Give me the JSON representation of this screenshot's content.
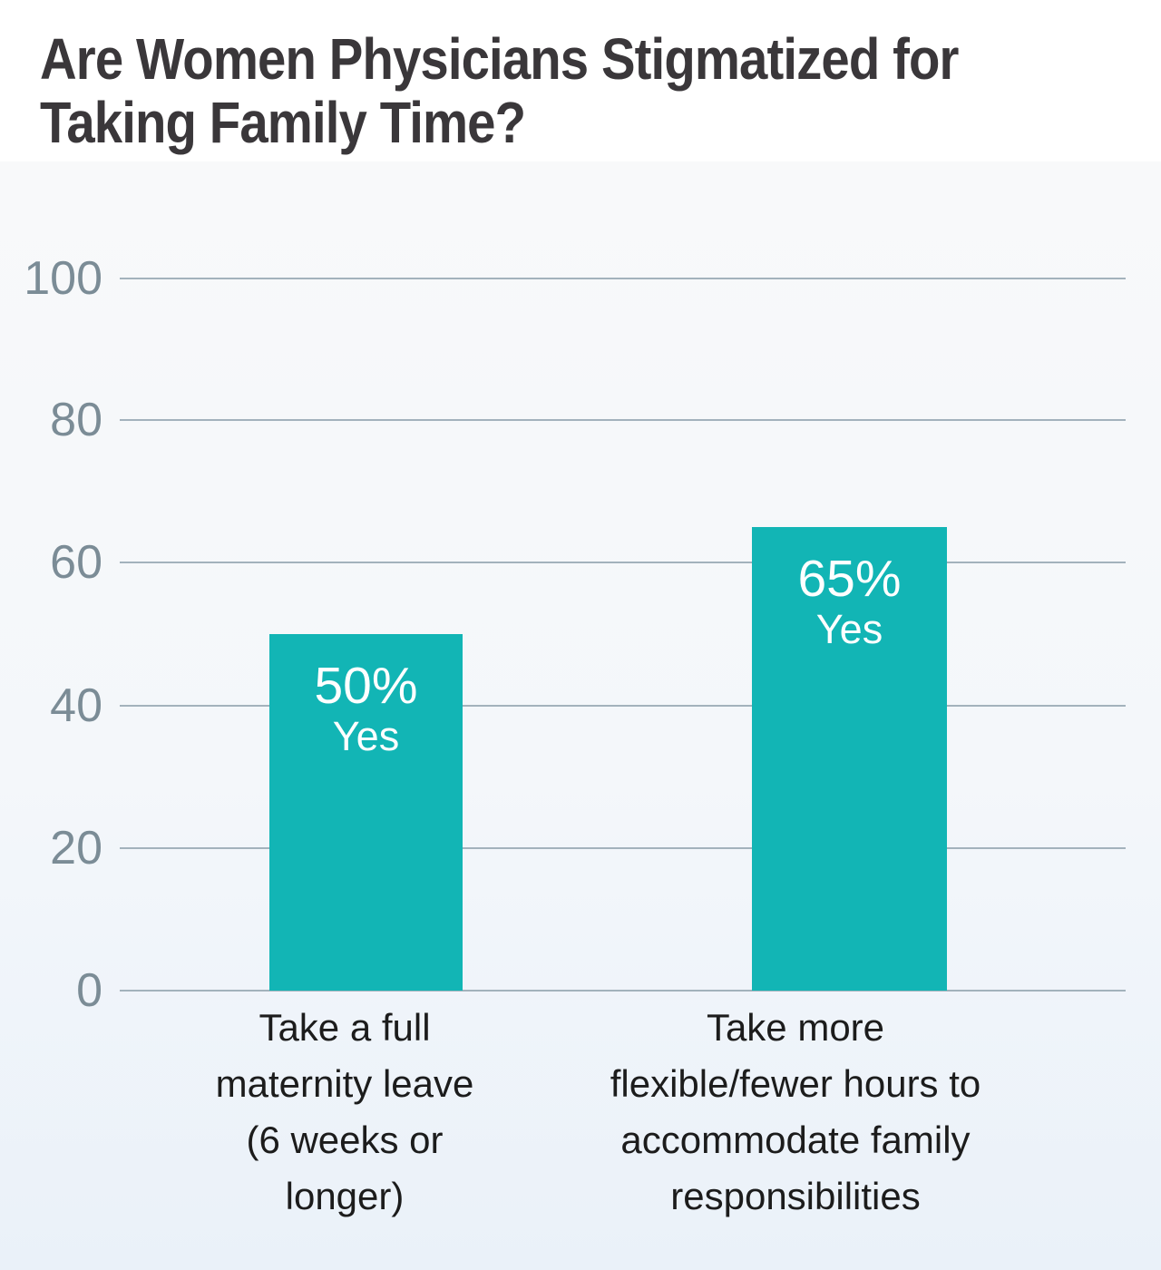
{
  "title": {
    "text": "Are Women Physicians Stigmatized for Taking Family Time?",
    "lines": [
      "Are Women Physicians Stigmatized for",
      "Taking Family Time?"
    ]
  },
  "y_axis": {
    "ticks": [
      "100",
      "80",
      "60",
      "40",
      "20",
      "0"
    ]
  },
  "bars": [
    {
      "pct": "50%",
      "answer": "Yes",
      "category_lines": [
        "Take a full",
        "maternity leave",
        "(6 weeks or",
        "longer)"
      ]
    },
    {
      "pct": "65%",
      "answer": "Yes",
      "category_lines": [
        "Take more",
        "flexible/fewer hours to",
        "accommodate family",
        "responsibilities"
      ]
    }
  ],
  "colors": {
    "bar": "#12b5b5",
    "gridline": "#a3b2bc",
    "tick_label": "#7b8c96",
    "title": "#3a373a",
    "category_label": "#1c1c1c",
    "panel_top": "#f8f9fa",
    "panel_bottom": "#eaf1f9",
    "bar_text": "#ffffff"
  },
  "chart_data": {
    "type": "bar",
    "title": "Are Women Physicians Stigmatized for Taking Family Time?",
    "categories": [
      "Take a full maternity leave (6 weeks or longer)",
      "Take more flexible/fewer hours to accommodate family responsibilities"
    ],
    "values": [
      50,
      65
    ],
    "value_labels": [
      "50% Yes",
      "65% Yes"
    ],
    "xlabel": "",
    "ylabel": "",
    "ylim": [
      0,
      100
    ],
    "y_ticks": [
      100,
      80,
      60,
      40,
      20,
      0
    ],
    "grid": true,
    "legend": false,
    "bar_color": "#12b5b5"
  }
}
